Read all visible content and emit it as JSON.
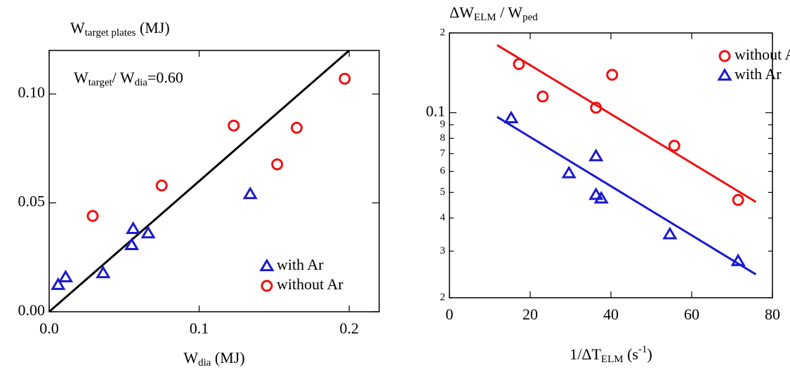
{
  "chart_data": [
    {
      "type": "scatter",
      "title": [
        {
          "t": "W"
        },
        {
          "t": "target plates",
          "s": "sub"
        },
        {
          "t": " (MJ)"
        }
      ],
      "annotation": [
        {
          "t": "W"
        },
        {
          "t": "target",
          "s": "sub"
        },
        {
          "t": "/  W"
        },
        {
          "t": "dia",
          "s": "sub"
        },
        {
          "t": "=0.60"
        }
      ],
      "x_label": [
        {
          "t": "W"
        },
        {
          "t": "dia",
          "s": "sub"
        },
        {
          "t": " (MJ)"
        }
      ],
      "xlim": [
        0,
        0.22
      ],
      "xticks": [
        {
          "value": 0,
          "label": "0.0"
        },
        0.1,
        0.2
      ],
      "ylim": [
        0,
        0.12
      ],
      "yticks": [
        {
          "value": 0,
          "label": "0.00"
        },
        {
          "value": 0.05,
          "label": "0.05"
        },
        {
          "value": 0.1,
          "label": "0.10"
        }
      ],
      "legend": "lower right",
      "fit": {
        "color": "#000000",
        "x": [
          0,
          0.2
        ],
        "y": [
          0,
          0.12
        ]
      },
      "series": [
        {
          "name": "with Ar",
          "marker": "triangle",
          "color": "#1a1acc",
          "x": [
            0.006,
            0.011,
            0.036,
            0.055,
            0.056,
            0.066,
            0.134
          ],
          "values": [
            0.0123,
            0.0158,
            0.0177,
            0.0306,
            0.038,
            0.036,
            0.054
          ]
        },
        {
          "name": "without Ar",
          "marker": "circle",
          "color": "#ee1111",
          "x": [
            0.029,
            0.075,
            0.123,
            0.152,
            0.165,
            0.197
          ],
          "values": [
            0.044,
            0.058,
            0.0855,
            0.0677,
            0.0845,
            0.107
          ]
        }
      ]
    },
    {
      "type": "scatter",
      "title": [
        {
          "t": "ΔW"
        },
        {
          "t": "ELM",
          "s": "sub"
        },
        {
          "t": " / W"
        },
        {
          "t": "ped",
          "s": "sub"
        }
      ],
      "x_label": [
        {
          "t": "1/ΔT"
        },
        {
          "t": "ELM",
          "s": "sub"
        },
        {
          "t": " (s"
        },
        {
          "t": "-1",
          "s": "sup"
        },
        {
          "t": ")"
        }
      ],
      "xlim": [
        0,
        80
      ],
      "xticks": [
        0,
        20,
        40,
        60,
        80
      ],
      "ylim": [
        0.02,
        0.2
      ],
      "log_y": true,
      "yticks": [
        {
          "value": 0.02,
          "label": "2"
        },
        {
          "value": 0.03,
          "label": "3"
        },
        {
          "value": 0.04,
          "label": "4"
        },
        {
          "value": 0.05,
          "label": "5"
        },
        {
          "value": 0.06,
          "label": "6"
        },
        {
          "value": 0.07,
          "label": "7"
        },
        {
          "value": 0.08,
          "label": "8"
        },
        {
          "value": 0.09,
          "label": "9"
        },
        0.1,
        {
          "value": 0.2,
          "label": "2"
        }
      ],
      "legend": "upper right",
      "series": [
        {
          "name": "without Ar",
          "marker": "circle",
          "color": "#ee1111",
          "x": [
            17.2,
            23.1,
            36.3,
            40.3,
            55.7,
            71.5
          ],
          "values": [
            0.1525,
            0.1151,
            0.1044,
            0.139,
            0.075,
            0.0468
          ],
          "fit": {
            "x": [
              11.8,
              75.9
            ],
            "y": [
              0.18,
              0.046
            ]
          }
        },
        {
          "name": "with Ar",
          "marker": "triangle",
          "color": "#1a1acc",
          "x": [
            15.3,
            29.6,
            36.3,
            36.3,
            37.6,
            54.6,
            71.5
          ],
          "values": [
            0.0952,
            0.059,
            0.0684,
            0.0489,
            0.0474,
            0.0347,
            0.0275
          ],
          "fit": {
            "x": [
              11.8,
              75.9
            ],
            "y": [
              0.0964,
              0.0245
            ]
          }
        }
      ]
    }
  ]
}
